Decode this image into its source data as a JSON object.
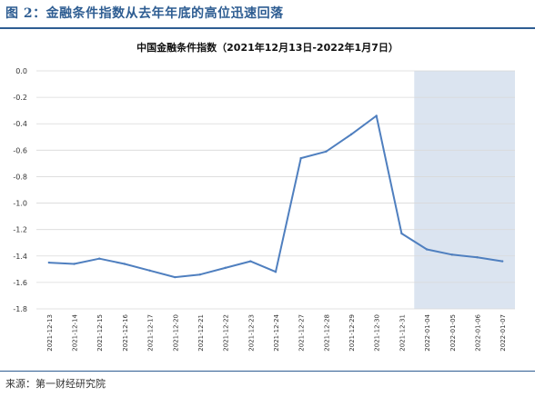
{
  "figure": {
    "title": "图 2：金融条件指数从去年年底的高位迅速回落",
    "source": "来源：第一财经研究院"
  },
  "chart_data": {
    "type": "line",
    "title": "中国金融条件指数（2021年12月13日-2022年1月7日）",
    "xlabel": "",
    "ylabel": "",
    "ylim": [
      -1.8,
      0.0
    ],
    "yticks": [
      "0.0",
      "-0.2",
      "-0.4",
      "-0.6",
      "-0.8",
      "-1.0",
      "-1.2",
      "-1.4",
      "-1.6",
      "-1.8"
    ],
    "grid": true,
    "legend": "none",
    "categories": [
      "2021-12-13",
      "2021-12-14",
      "2021-12-15",
      "2021-12-16",
      "2021-12-17",
      "2021-12-20",
      "2021-12-21",
      "2021-12-22",
      "2021-12-23",
      "2021-12-24",
      "2021-12-27",
      "2021-12-28",
      "2021-12-29",
      "2021-12-30",
      "2021-12-31",
      "2022-01-04",
      "2022-01-05",
      "2022-01-06",
      "2022-01-07"
    ],
    "series": [
      {
        "values": [
          -1.45,
          -1.46,
          -1.42,
          -1.46,
          -1.51,
          -1.56,
          -1.54,
          -1.49,
          -1.44,
          -1.52,
          -0.66,
          -0.61,
          -0.48,
          -0.34,
          -1.23,
          -1.35,
          -1.39,
          -1.41,
          -1.44
        ]
      }
    ],
    "highlight_range": [
      "2022-01-04",
      "2022-01-07"
    ],
    "colors": {
      "line": "#4f7fbf",
      "highlight": "#dbe4f0",
      "grid": "#d9d9d9"
    }
  }
}
